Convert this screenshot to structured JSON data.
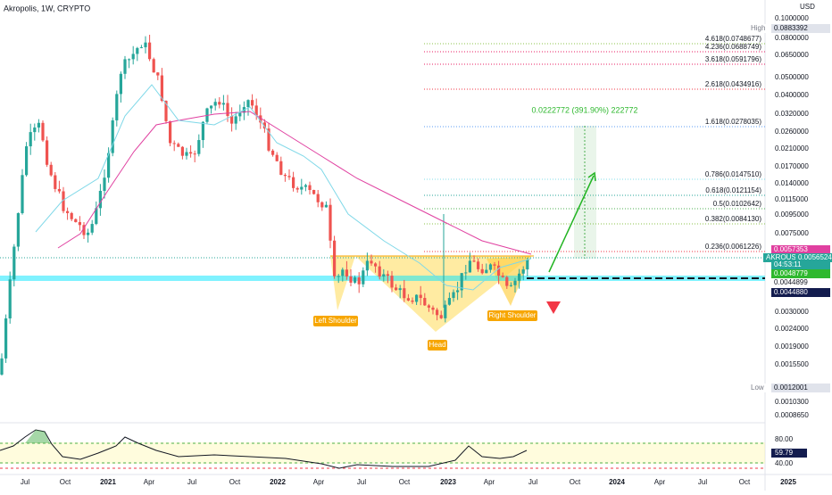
{
  "header": {
    "title": "Akropolis, 1W, CRYPTO",
    "currency": "USD"
  },
  "price_axis": {
    "labels": [
      "0.1000000",
      "0.0800000",
      "0.0650000",
      "0.0500000",
      "0.0400000",
      "0.0320000",
      "0.0260000",
      "0.0210000",
      "0.0170000",
      "0.0140000",
      "0.0115000",
      "0.0095000",
      "0.0075000",
      "0.0030000",
      "0.0024000",
      "0.0019000",
      "0.0015500",
      "0.0010300",
      "0.0008650"
    ],
    "high": {
      "label": "High",
      "value": "0.0883392"
    },
    "low": {
      "label": "Low",
      "value": "0.0012001"
    },
    "markers": {
      "pink": "0.0057353",
      "symbol": "AKROUSD",
      "last": "0.0056524",
      "countdown": "04:53:11",
      "green": "0.0048779",
      "grey": "0.0044899",
      "navy": "0.0044880"
    }
  },
  "fib_levels": [
    "4.618(0.0748677)",
    "4.236(0.0688749)",
    "3.618(0.0591796)",
    "2.618(0.0434916)",
    "1.618(0.0278035)",
    "0.786(0.0147510)",
    "0.618(0.0121154)",
    "0.5(0.0102642)",
    "0.382(0.0084130)",
    "0.236(0.0061226)"
  ],
  "measure": "0.0222772 (391.90%) 222772",
  "patterns": [
    "Left Shoulder",
    "Head",
    "Right Shoulder"
  ],
  "time_axis": [
    "Jul",
    "Oct",
    "2021",
    "Apr",
    "Jul",
    "Oct",
    "2022",
    "Apr",
    "Jul",
    "Oct",
    "2023",
    "Apr",
    "Jul",
    "Oct",
    "2024",
    "Apr",
    "Jul",
    "Oct",
    "2025"
  ],
  "rsi_axis": {
    "upper": "80.00",
    "value": "59.79",
    "lower": "40.00"
  }
}
